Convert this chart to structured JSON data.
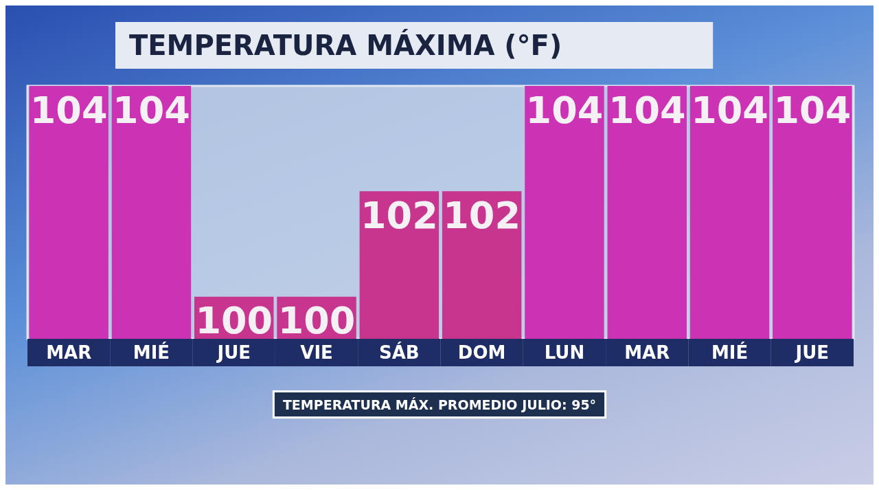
{
  "chart_data": {
    "type": "bar",
    "title": "TEMPERATURA MÁXIMA (°F)",
    "categories": [
      "MAR",
      "MIÉ",
      "JUE",
      "VIE",
      "SÁB",
      "DOM",
      "LUN",
      "MAR",
      "MIÉ",
      "JUE"
    ],
    "values": [
      104,
      104,
      100,
      100,
      102,
      102,
      104,
      104,
      104,
      104
    ],
    "colors": [
      "#cc33b4",
      "#cc33b4",
      "#c8358e",
      "#c8358e",
      "#c8358e",
      "#c8358e",
      "#cc33b4",
      "#cc33b4",
      "#cc33b4",
      "#cc33b4"
    ],
    "ylim": [
      99.2,
      104
    ],
    "data_labels": true,
    "annotations": [
      "TEMPERATURA MÁX. PROMEDIO JULIO: 95°"
    ]
  }
}
